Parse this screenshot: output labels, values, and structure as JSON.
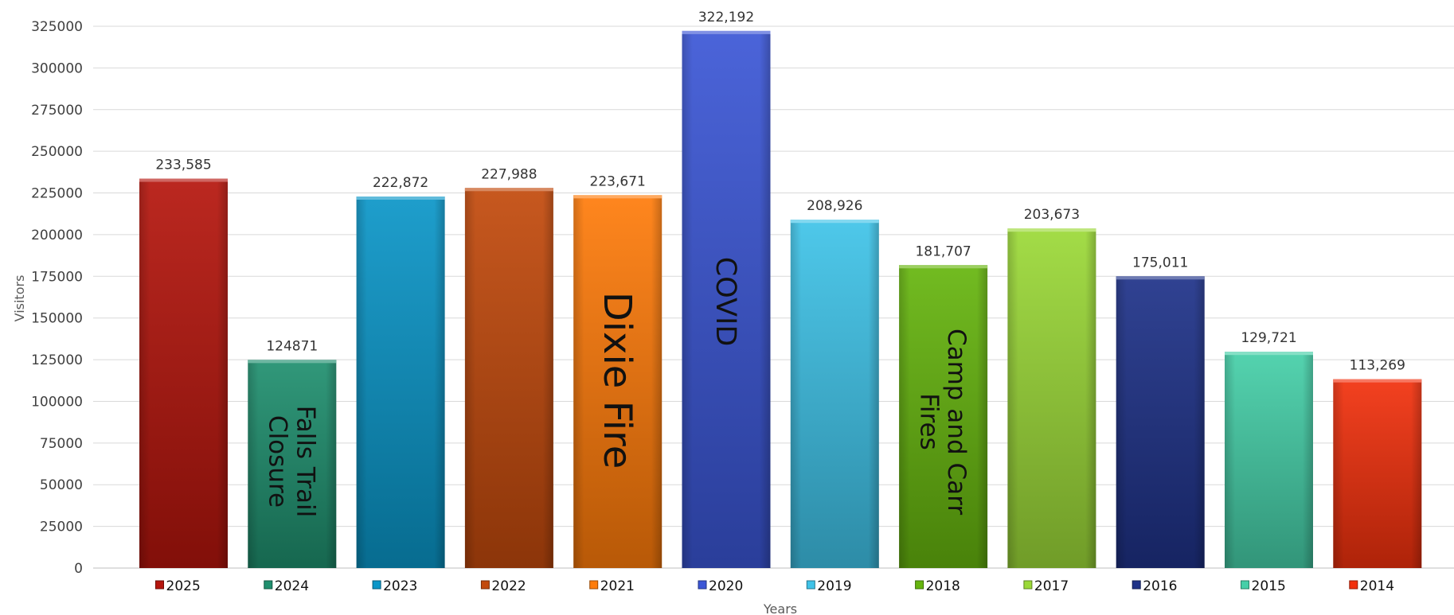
{
  "chart_data": {
    "type": "bar",
    "title": "",
    "xlabel": "Years",
    "ylabel": "Visitors",
    "ylim": [
      0,
      325000
    ],
    "ytick_step": 25000,
    "yticks": [
      "0",
      "25000",
      "50000",
      "75000",
      "100000",
      "125000",
      "150000",
      "175000",
      "200000",
      "225000",
      "250000",
      "275000",
      "300000",
      "325000"
    ],
    "categories": [
      "2025",
      "2024",
      "2023",
      "2022",
      "2021",
      "2020",
      "2019",
      "2018",
      "2017",
      "2016",
      "2015",
      "2014"
    ],
    "values": [
      233585,
      124871,
      222872,
      227988,
      223671,
      322192,
      208926,
      181707,
      203673,
      175011,
      129721,
      113269
    ],
    "data_labels": [
      "233,585",
      "124871",
      "222,872",
      "227,988",
      "223,671",
      "322,192",
      "208,926",
      "181,707",
      "203,673",
      "175,011",
      "129,721",
      "113,269"
    ],
    "colors": [
      "#B5150D",
      "#1F8F6E",
      "#0A96C8",
      "#C2490C",
      "#FF7C0A",
      "#3B56D6",
      "#3FC3E8",
      "#66B50E",
      "#9BD937",
      "#1E3288",
      "#45CFA8",
      "#F2300D"
    ],
    "annotations": [
      {
        "category": "2024",
        "lines": [
          "Falls Trail",
          "Closure"
        ],
        "size": "medium"
      },
      {
        "category": "2021",
        "lines": [
          "Dixie Fire"
        ],
        "size": "large"
      },
      {
        "category": "2020",
        "lines": [
          "COVID"
        ],
        "size": "medium"
      },
      {
        "category": "2018",
        "lines": [
          "Camp and Carr",
          "Fires"
        ],
        "size": "medium"
      }
    ],
    "grid": true,
    "legend": "bottom"
  }
}
